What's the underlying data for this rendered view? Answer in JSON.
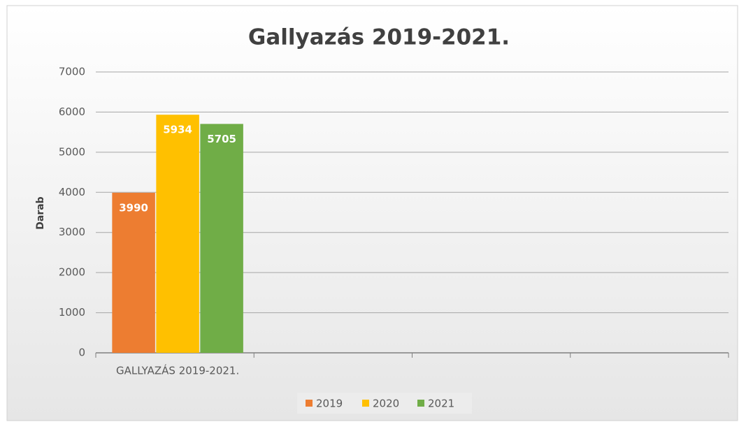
{
  "chart_data": {
    "type": "bar",
    "title": "Gallyazás 2019-2021.",
    "y_label": "Darab",
    "categories": [
      "GALLYAZÁS 2019-2021.",
      null,
      null,
      null
    ],
    "series": [
      {
        "name": "2019",
        "color": "#ed7d31",
        "values": [
          3990,
          null,
          null,
          null
        ]
      },
      {
        "name": "2020",
        "color": "#ffc000",
        "values": [
          5934,
          null,
          null,
          null
        ]
      },
      {
        "name": "2021",
        "color": "#70ad47",
        "values": [
          5705,
          null,
          null,
          null
        ]
      }
    ],
    "ylim": [
      0,
      7000
    ],
    "yticks": [
      0,
      1000,
      2000,
      3000,
      4000,
      5000,
      6000,
      7000
    ],
    "grid": true,
    "legend": "bottom"
  }
}
